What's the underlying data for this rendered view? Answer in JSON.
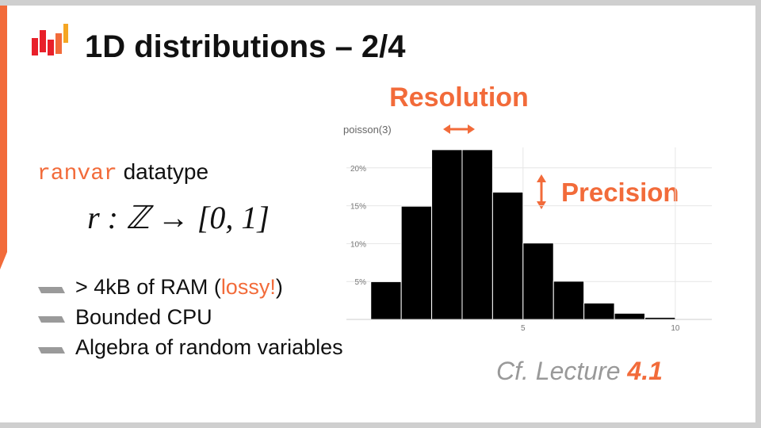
{
  "slide": {
    "title": "1D distributions – 2/4",
    "datatype": {
      "code": "ranvar",
      "text": " datatype"
    },
    "formula": "r : ℤ → [0, 1]",
    "bullets": [
      {
        "before": "> 4kB of RAM (",
        "highlight": "lossy!",
        "after": ")"
      },
      {
        "text": "Bounded CPU"
      },
      {
        "text": "Algebra of random variables"
      }
    ],
    "annotations": {
      "resolution": "Resolution",
      "precision": "Precision"
    },
    "reference": {
      "text": "Cf. Lecture ",
      "number": "4.1"
    }
  },
  "chart_data": {
    "type": "histogram",
    "title": "poisson(3)",
    "bins": [
      0,
      1,
      2,
      3,
      4,
      5,
      6,
      7,
      8,
      9,
      10,
      11
    ],
    "values": [
      4.98,
      14.94,
      22.4,
      22.4,
      16.8,
      10.08,
      5.04,
      2.16,
      0.81,
      0.27,
      0.08
    ],
    "color": "#000000",
    "xlim": [
      -0.8,
      11.2
    ],
    "ylim": [
      0,
      22.7
    ],
    "xticks": [
      5,
      10
    ],
    "yticks": [
      {
        "value": 5,
        "label": "5%"
      },
      {
        "value": 10,
        "label": "10%"
      },
      {
        "value": 15,
        "label": "15%"
      },
      {
        "value": 20,
        "label": "20%"
      }
    ],
    "grid": true
  }
}
